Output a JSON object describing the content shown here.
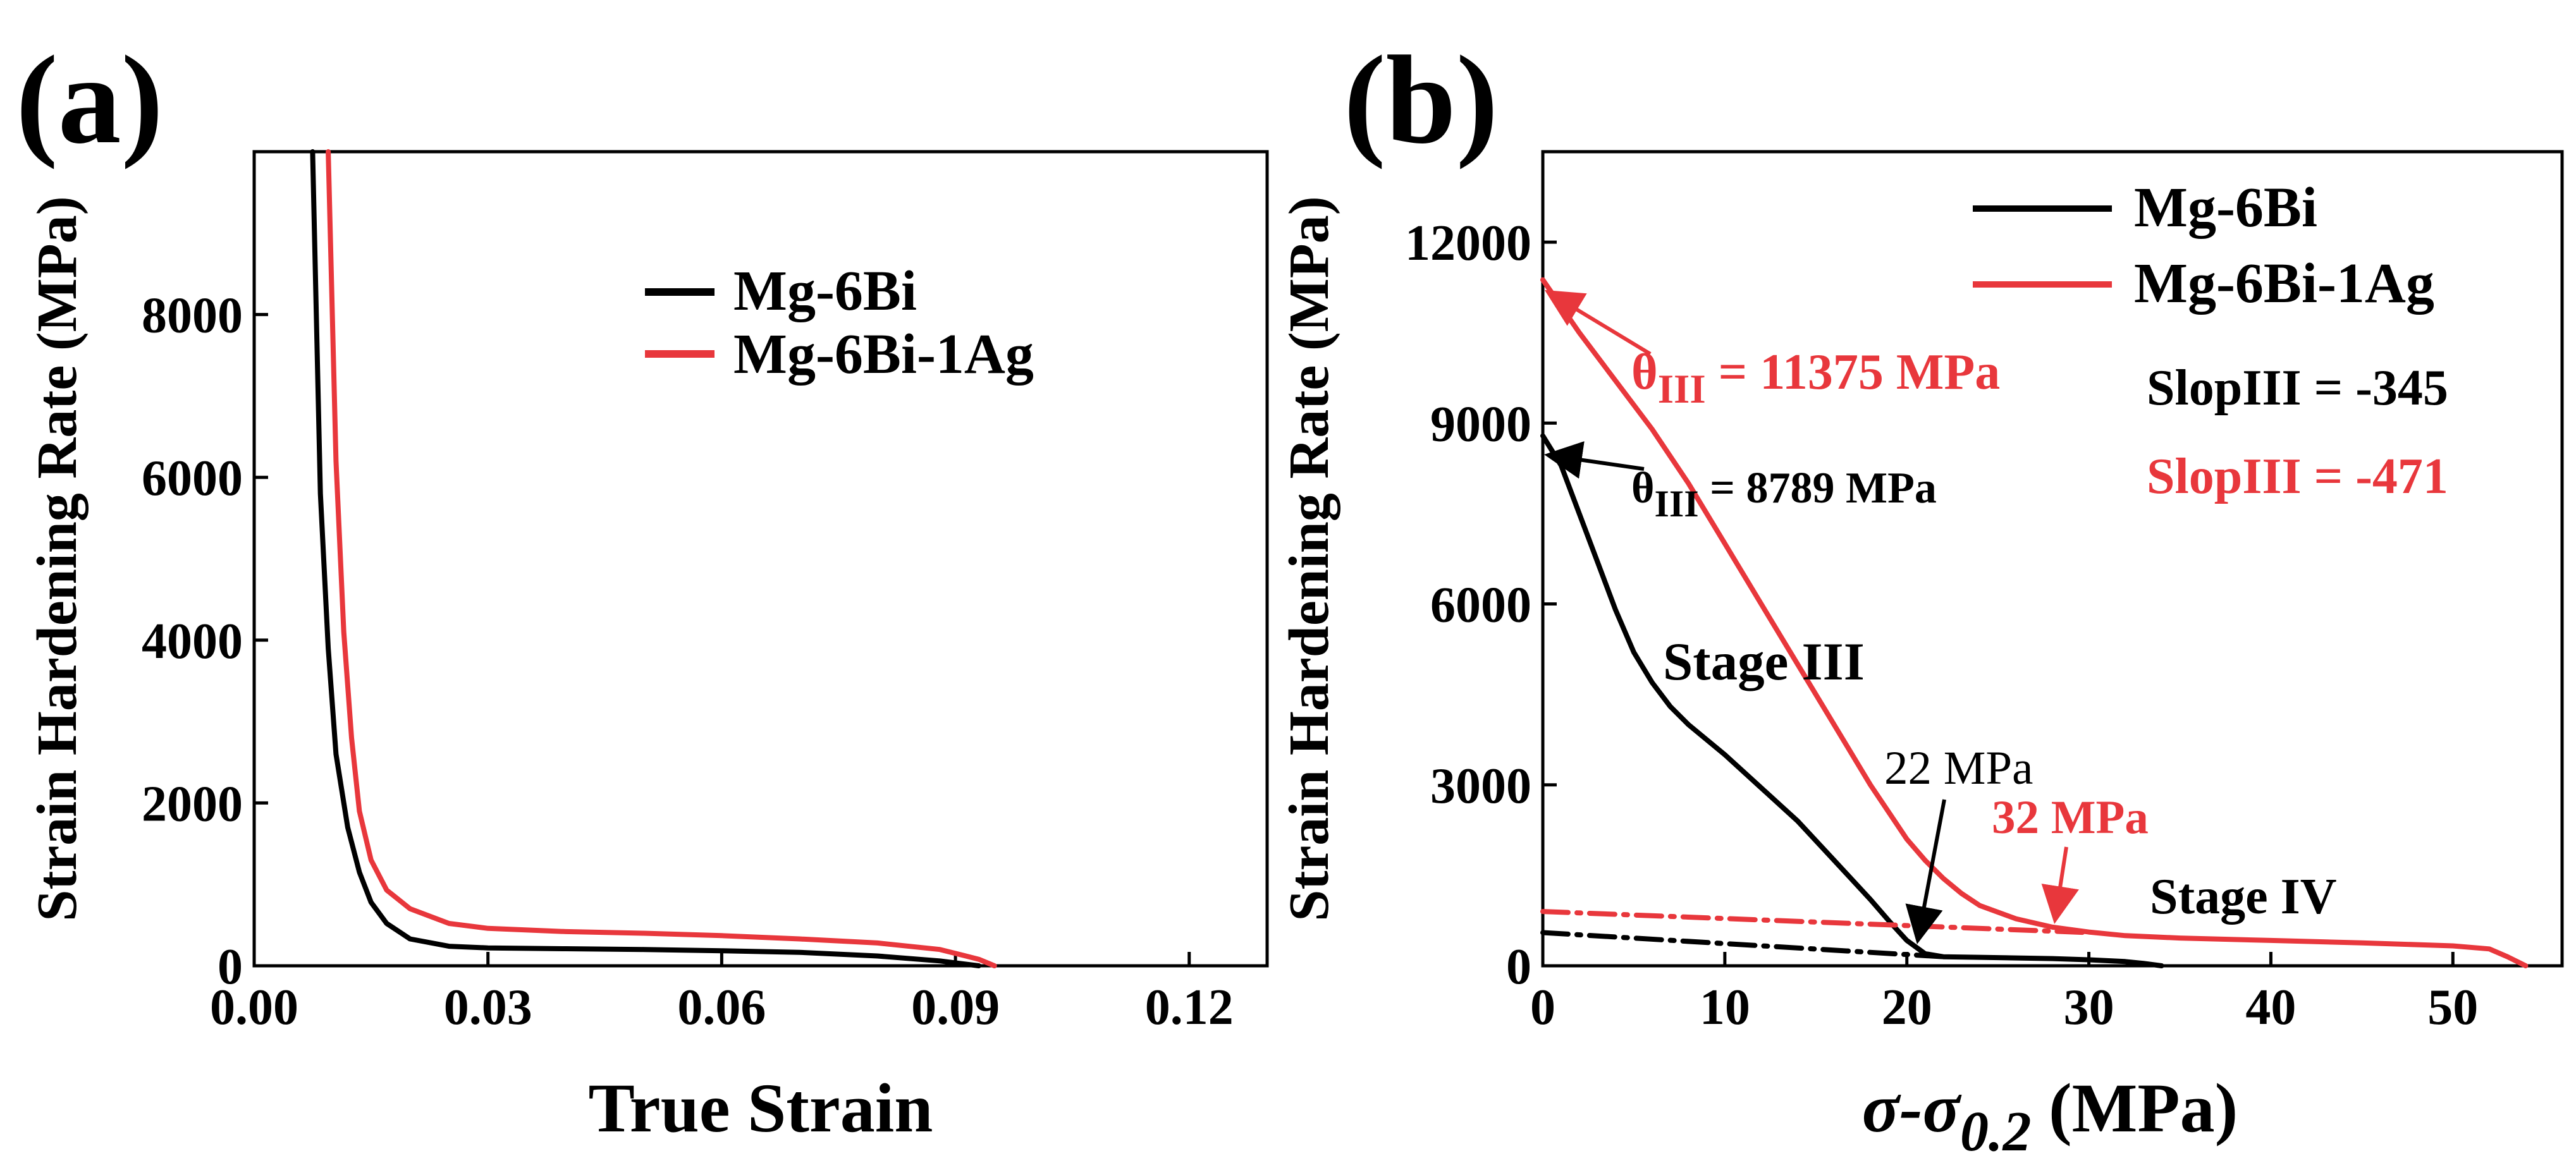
{
  "colors": {
    "black": "#000000",
    "red": "#e8373c"
  },
  "chart_data": [
    {
      "type": "line",
      "panel_label": "(a)",
      "xlabel": "True Strain",
      "ylabel": "Strain Hardening Rate (MPa)",
      "xlim": [
        0,
        0.13
      ],
      "ylim": [
        0,
        10000
      ],
      "xticks": [
        "0.00",
        "0.03",
        "0.06",
        "0.09",
        "0.12"
      ],
      "yticks": [
        "0",
        "2000",
        "4000",
        "6000",
        "8000"
      ],
      "legend": [
        "Mg-6Bi",
        "Mg-6Bi-1Ag"
      ],
      "legend_position": "top-right",
      "series": [
        {
          "name": "Mg-6Bi",
          "color": "#000000",
          "x": [
            0.0075,
            0.0085,
            0.0095,
            0.0105,
            0.012,
            0.0135,
            0.015,
            0.017,
            0.02,
            0.025,
            0.03,
            0.04,
            0.05,
            0.06,
            0.07,
            0.08,
            0.088,
            0.093
          ],
          "y": [
            10000,
            5800,
            3900,
            2600,
            1700,
            1150,
            780,
            520,
            330,
            240,
            220,
            210,
            200,
            185,
            165,
            120,
            60,
            0
          ]
        },
        {
          "name": "Mg-6Bi-1Ag",
          "color": "#e8373c",
          "x": [
            0.0095,
            0.0105,
            0.0115,
            0.0125,
            0.0135,
            0.015,
            0.017,
            0.02,
            0.025,
            0.03,
            0.04,
            0.05,
            0.06,
            0.07,
            0.08,
            0.088,
            0.093,
            0.095
          ],
          "y": [
            10000,
            6200,
            4100,
            2800,
            1900,
            1300,
            930,
            700,
            520,
            460,
            420,
            400,
            370,
            330,
            280,
            200,
            80,
            0
          ]
        }
      ]
    },
    {
      "type": "line",
      "panel_label": "(b)",
      "xlabel_main": "σ-σ",
      "xlabel_sub": "0.2",
      "xlabel_unit": " (MPa)",
      "ylabel": "Strain Hardening Rate (MPa)",
      "xlim": [
        0,
        56
      ],
      "ylim": [
        0,
        13500
      ],
      "xticks": [
        "0",
        "10",
        "20",
        "30",
        "40",
        "50"
      ],
      "yticks": [
        "0",
        "3000",
        "6000",
        "9000",
        "12000"
      ],
      "legend": [
        "Mg-6Bi",
        "Mg-6Bi-1Ag"
      ],
      "legend_position": "top-right",
      "series": [
        {
          "name": "Mg-6Bi",
          "color": "#000000",
          "x": [
            0,
            1,
            2,
            3,
            4,
            5,
            6,
            7,
            8,
            10,
            12,
            14,
            16,
            18,
            19,
            20,
            21,
            22,
            24,
            26,
            28,
            30,
            32,
            33,
            34
          ],
          "y": [
            8789,
            8300,
            7500,
            6700,
            5900,
            5200,
            4700,
            4300,
            4000,
            3500,
            2950,
            2400,
            1750,
            1100,
            750,
            420,
            200,
            150,
            140,
            130,
            120,
            100,
            70,
            40,
            0
          ]
        },
        {
          "name": "Mg-6Bi-1Ag",
          "color": "#e8373c",
          "x": [
            0,
            2,
            4,
            6,
            8,
            10,
            12,
            14,
            16,
            18,
            20,
            21,
            22,
            23,
            24,
            26,
            28,
            30,
            32,
            35,
            40,
            45,
            50,
            52,
            53,
            54
          ],
          "y": [
            11375,
            10500,
            9700,
            8900,
            8000,
            7000,
            6000,
            5000,
            4000,
            3000,
            2100,
            1750,
            1450,
            1200,
            1000,
            780,
            640,
            560,
            500,
            460,
            420,
            380,
            330,
            280,
            150,
            0
          ]
        },
        {
          "name": "Mg-6Bi fit",
          "color": "#000000",
          "style": "dash-dot",
          "x": [
            0,
            22
          ],
          "y": [
            550,
            150
          ]
        },
        {
          "name": "Mg-6Bi-1Ag fit",
          "color": "#e8373c",
          "style": "dash-dot",
          "x": [
            0,
            30
          ],
          "y": [
            900,
            550
          ]
        }
      ],
      "extra_legend": {
        "slop_black": "SlopIII = -345",
        "slop_red": "SlopIII = -471"
      },
      "annotations": {
        "theta_red_main": "θ",
        "theta_red_sub": "III",
        "theta_red_rest": " = 11375 MPa",
        "theta_black_main": "θ",
        "theta_black_sub": "III",
        "theta_black_rest": " = 8789 MPa",
        "stage3": "Stage III",
        "stage4": "Stage IV",
        "mpa22": "22 MPa",
        "mpa32": "32 MPa"
      }
    }
  ]
}
